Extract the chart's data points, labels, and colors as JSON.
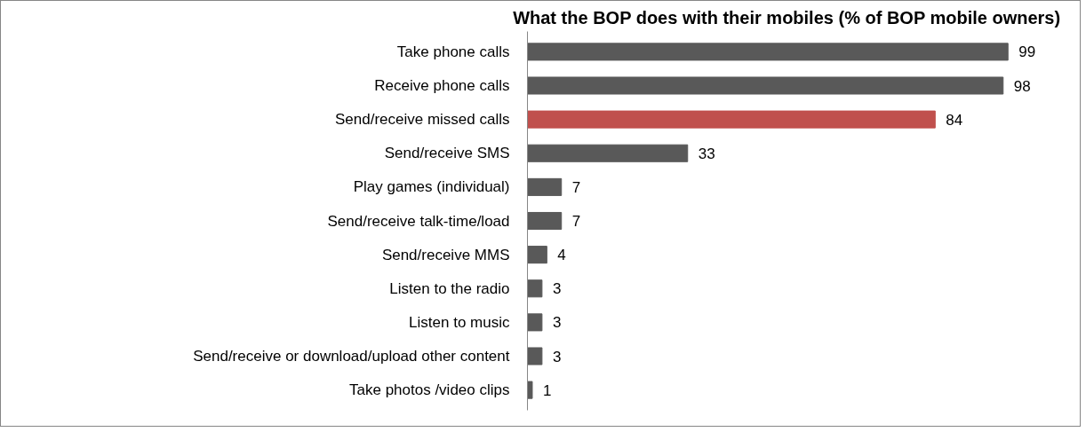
{
  "chart_data": {
    "type": "bar",
    "orientation": "horizontal",
    "title": "What the BOP does with their mobiles (% of BOP mobile owners)",
    "categories": [
      "Take phone calls",
      "Receive phone calls",
      "Send/receive missed calls",
      "Send/receive SMS",
      "Play games (individual)",
      "Send/receive talk-time/load",
      "Send/receive MMS",
      "Listen to the radio",
      "Listen to music",
      "Send/receive or download/upload other content",
      "Take photos /video clips"
    ],
    "values": [
      99,
      98,
      84,
      33,
      7,
      7,
      4,
      3,
      3,
      3,
      1
    ],
    "colors": [
      "#595959",
      "#595959",
      "#c0504d",
      "#595959",
      "#595959",
      "#595959",
      "#595959",
      "#595959",
      "#595959",
      "#595959",
      "#595959"
    ],
    "data_labels": true,
    "tick_labels": "y"
  }
}
